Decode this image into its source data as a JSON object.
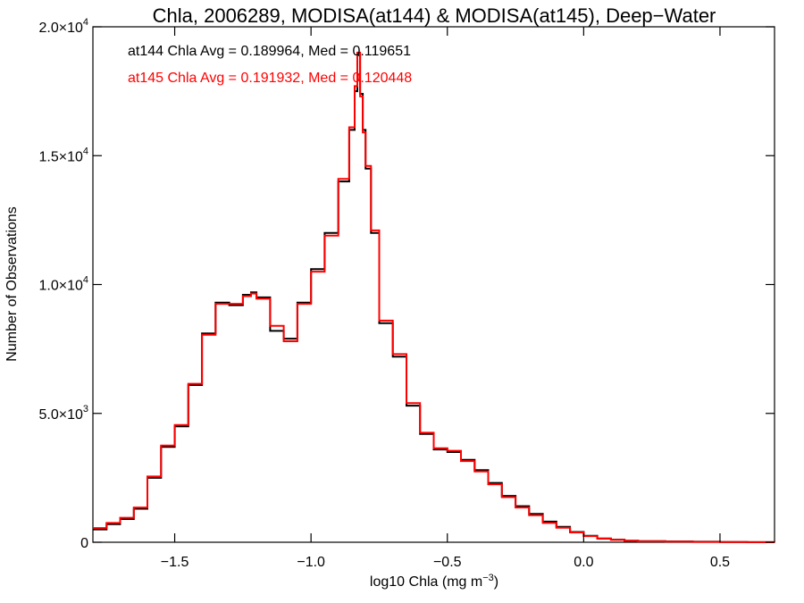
{
  "chart_data": {
    "type": "line",
    "title": "Chla, 2006289, MODISA(at144) & MODISA(at145), Deep−Water",
    "xlabel": "log10 Chla (mg m",
    "xlabel_sup": "−3",
    "xlabel_suffix": ")",
    "ylabel": "Number of Observations",
    "xlim": [
      -1.8,
      0.7
    ],
    "ylim": [
      0,
      20000
    ],
    "x_ticks": [
      {
        "value": -1.5,
        "label": "−1.5"
      },
      {
        "value": -1.0,
        "label": "−1.0"
      },
      {
        "value": -0.5,
        "label": "−0.5"
      },
      {
        "value": 0.0,
        "label": "0.0"
      },
      {
        "value": 0.5,
        "label": "0.5"
      }
    ],
    "y_ticks": [
      {
        "value": 0,
        "mant": "0",
        "exp": ""
      },
      {
        "value": 5000,
        "mant": "5.0×10",
        "exp": "3"
      },
      {
        "value": 10000,
        "mant": "1.0×10",
        "exp": "4"
      },
      {
        "value": 15000,
        "mant": "1.5×10",
        "exp": "4"
      },
      {
        "value": 20000,
        "mant": "2.0×10",
        "exp": "4"
      }
    ],
    "annotations": [
      {
        "text": "at144 Chla Avg = 0.189964, Med = 0.119651",
        "color": "#000000"
      },
      {
        "text": "at145 Chla Avg = 0.191932, Med = 0.120448",
        "color": "#ff0000"
      }
    ],
    "series": [
      {
        "color": "#000000",
        "x": [
          -1.8,
          -1.75,
          -1.7,
          -1.65,
          -1.6,
          -1.55,
          -1.5,
          -1.45,
          -1.4,
          -1.35,
          -1.3,
          -1.25,
          -1.22,
          -1.2,
          -1.15,
          -1.1,
          -1.05,
          -1.0,
          -0.95,
          -0.9,
          -0.86,
          -0.84,
          -0.83,
          -0.82,
          -0.81,
          -0.8,
          -0.78,
          -0.75,
          -0.7,
          -0.65,
          -0.6,
          -0.55,
          -0.5,
          -0.45,
          -0.4,
          -0.35,
          -0.3,
          -0.25,
          -0.2,
          -0.15,
          -0.1,
          -0.05,
          0.0,
          0.05,
          0.1,
          0.15,
          0.2,
          0.3,
          0.4,
          0.5,
          0.6,
          0.7
        ],
        "y": [
          500,
          700,
          900,
          1300,
          2500,
          3700,
          4500,
          6100,
          8100,
          9300,
          9200,
          9600,
          9700,
          9500,
          8200,
          7900,
          9300,
          10600,
          12000,
          14000,
          16000,
          17500,
          18900,
          17400,
          16000,
          14500,
          12000,
          8500,
          7200,
          5300,
          4200,
          3600,
          3500,
          3200,
          2800,
          2300,
          1800,
          1400,
          1100,
          800,
          600,
          400,
          250,
          150,
          100,
          60,
          40,
          30,
          20,
          10,
          5,
          0
        ]
      },
      {
        "color": "#ff0000",
        "x": [
          -1.8,
          -1.75,
          -1.7,
          -1.65,
          -1.6,
          -1.55,
          -1.5,
          -1.45,
          -1.4,
          -1.35,
          -1.3,
          -1.25,
          -1.22,
          -1.2,
          -1.15,
          -1.1,
          -1.05,
          -1.0,
          -0.95,
          -0.9,
          -0.86,
          -0.84,
          -0.83,
          -0.82,
          -0.81,
          -0.8,
          -0.78,
          -0.75,
          -0.7,
          -0.65,
          -0.6,
          -0.55,
          -0.5,
          -0.45,
          -0.4,
          -0.35,
          -0.3,
          -0.25,
          -0.2,
          -0.15,
          -0.1,
          -0.05,
          0.0,
          0.05,
          0.1,
          0.15,
          0.2,
          0.3,
          0.4,
          0.5,
          0.6,
          0.7
        ],
        "y": [
          550,
          750,
          950,
          1350,
          2550,
          3750,
          4550,
          6150,
          8050,
          9250,
          9250,
          9550,
          9650,
          9450,
          8400,
          7800,
          9250,
          10500,
          11900,
          14100,
          16100,
          17700,
          19000,
          17300,
          15900,
          14600,
          12100,
          8600,
          7300,
          5400,
          4250,
          3650,
          3550,
          3150,
          2750,
          2250,
          1750,
          1350,
          1050,
          750,
          560,
          380,
          240,
          140,
          95,
          55,
          35,
          25,
          15,
          8,
          4,
          0
        ]
      }
    ]
  }
}
